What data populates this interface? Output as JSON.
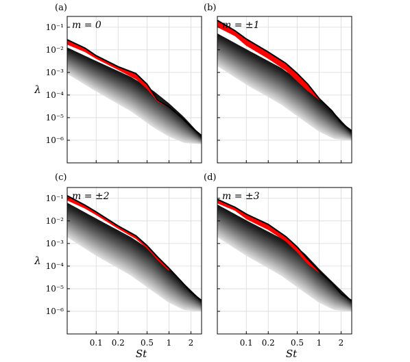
{
  "chart_data": [
    {
      "type": "line",
      "panel": "(a)",
      "mode_label": "m = 0",
      "xlabel": "",
      "ylabel": "λ",
      "xscale": "log",
      "yscale": "log",
      "xlim": [
        0.04,
        2.8
      ],
      "ylim": [
        1e-07,
        0.3
      ],
      "xticks": [
        0.1,
        0.2,
        0.5,
        1,
        2
      ],
      "xtick_labels": [],
      "yticks": [
        1e-06,
        1e-05,
        0.0001,
        0.001,
        0.01,
        0.1
      ],
      "ytick_labels": [
        "10⁻⁶",
        "10⁻⁵",
        "10⁻⁴",
        "10⁻³",
        "10⁻²",
        "10⁻¹"
      ],
      "grid": true,
      "series": [
        {
          "role": "leading",
          "color": "#000000",
          "x": [
            0.04,
            0.07,
            0.1,
            0.2,
            0.35,
            0.5,
            0.7,
            1.0,
            1.5,
            2.0,
            2.8
          ],
          "y": [
            0.028,
            0.012,
            0.0055,
            0.0018,
            0.0009,
            0.0003,
            6e-05,
            3e-05,
            1e-05,
            4e-06,
            1.6e-06
          ]
        },
        {
          "role": "gap-band",
          "color": "#ff0000",
          "x": [
            0.04,
            0.07,
            0.1,
            0.2,
            0.35,
            0.5,
            0.7,
            1.0
          ],
          "y_upper": [
            0.028,
            0.012,
            0.0055,
            0.0018,
            0.0009,
            0.0003,
            6e-05,
            3e-05
          ],
          "y_lower": [
            0.017,
            0.008,
            0.004,
            0.0013,
            0.0005,
            0.00018,
            5e-05,
            2.8e-05
          ]
        },
        {
          "role": "suboptimal-family",
          "color": "#000000",
          "x": [
            0.04,
            0.1,
            0.3,
            0.6,
            1.0,
            1.6,
            2.8
          ],
          "y_top": [
            0.012,
            0.003,
            0.0006,
            0.00015,
            4e-05,
            1e-05,
            1.4e-06
          ],
          "y_bottom": [
            0.0009,
            0.00015,
            2e-05,
            4e-06,
            1.5e-06,
            8e-07,
            7e-07
          ]
        }
      ]
    },
    {
      "type": "line",
      "panel": "(b)",
      "mode_label": "m = ±1",
      "xlabel": "",
      "ylabel": "",
      "xscale": "log",
      "yscale": "log",
      "xlim": [
        0.04,
        2.8
      ],
      "ylim": [
        1e-07,
        0.3
      ],
      "xticks": [
        0.1,
        0.2,
        0.5,
        1,
        2
      ],
      "xtick_labels": [],
      "yticks": [
        1e-06,
        1e-05,
        0.0001,
        0.001,
        0.01,
        0.1
      ],
      "ytick_labels": [],
      "grid": true,
      "series": [
        {
          "role": "leading",
          "color": "#000000",
          "x": [
            0.04,
            0.07,
            0.1,
            0.2,
            0.35,
            0.5,
            0.7,
            1.0,
            1.5,
            2.0,
            2.8
          ],
          "y": [
            0.2,
            0.07,
            0.03,
            0.008,
            0.0025,
            0.0009,
            0.0003,
            7e-05,
            2e-05,
            6e-06,
            2.6e-06
          ]
        },
        {
          "role": "gap-band",
          "color": "#ff0000",
          "x": [
            0.04,
            0.07,
            0.1,
            0.2,
            0.35,
            0.5,
            0.7,
            1.0
          ],
          "y_upper": [
            0.2,
            0.07,
            0.03,
            0.008,
            0.0025,
            0.0009,
            0.0003,
            7e-05
          ],
          "y_lower": [
            0.1,
            0.04,
            0.015,
            0.004,
            0.0012,
            0.0004,
            0.00015,
            6e-05
          ]
        },
        {
          "role": "suboptimal-family",
          "color": "#000000",
          "x": [
            0.04,
            0.1,
            0.3,
            0.6,
            1.0,
            1.6,
            2.8
          ],
          "y_top": [
            0.05,
            0.01,
            0.0015,
            0.0003,
            6e-05,
            1.5e-05,
            2.2e-06
          ],
          "y_bottom": [
            0.002,
            0.0003,
            4e-05,
            8e-06,
            2.5e-06,
            1.2e-06,
            1e-06
          ]
        }
      ]
    },
    {
      "type": "line",
      "panel": "(c)",
      "mode_label": "m = ±2",
      "xlabel": "St",
      "ylabel": "λ",
      "xscale": "log",
      "yscale": "log",
      "xlim": [
        0.04,
        2.8
      ],
      "ylim": [
        1e-07,
        0.3
      ],
      "xticks": [
        0.1,
        0.2,
        0.5,
        1,
        2
      ],
      "xtick_labels": [
        "0.1",
        "0.2",
        "0.5",
        "1",
        "2"
      ],
      "yticks": [
        1e-06,
        1e-05,
        0.0001,
        0.001,
        0.01,
        0.1
      ],
      "ytick_labels": [
        "10⁻⁶",
        "10⁻⁵",
        "10⁻⁴",
        "10⁻³",
        "10⁻²",
        "10⁻¹"
      ],
      "grid": true,
      "series": [
        {
          "role": "leading",
          "color": "#000000",
          "x": [
            0.04,
            0.07,
            0.1,
            0.2,
            0.35,
            0.5,
            0.7,
            1.0,
            1.5,
            2.0,
            2.8
          ],
          "y": [
            0.13,
            0.05,
            0.025,
            0.006,
            0.0022,
            0.0008,
            0.00025,
            8e-05,
            2e-05,
            7e-06,
            3e-06
          ]
        },
        {
          "role": "gap-band",
          "color": "#ff0000",
          "x": [
            0.04,
            0.07,
            0.1,
            0.2,
            0.35,
            0.5,
            0.7,
            1.0
          ],
          "y_upper": [
            0.13,
            0.05,
            0.025,
            0.006,
            0.0022,
            0.0008,
            0.00025,
            8e-05
          ],
          "y_lower": [
            0.08,
            0.035,
            0.018,
            0.0045,
            0.0016,
            0.0006,
            0.00018,
            6e-05
          ]
        },
        {
          "role": "suboptimal-family",
          "color": "#000000",
          "x": [
            0.04,
            0.1,
            0.3,
            0.6,
            1.0,
            1.6,
            2.8
          ],
          "y_top": [
            0.06,
            0.012,
            0.0018,
            0.0004,
            7e-05,
            1.6e-05,
            2.8e-06
          ],
          "y_bottom": [
            0.002,
            0.0003,
            4e-05,
            8e-06,
            2.5e-06,
            1.2e-06,
            1e-06
          ]
        }
      ]
    },
    {
      "type": "line",
      "panel": "(d)",
      "mode_label": "m = ±3",
      "xlabel": "St",
      "ylabel": "",
      "xscale": "log",
      "yscale": "log",
      "xlim": [
        0.04,
        2.8
      ],
      "ylim": [
        1e-07,
        0.3
      ],
      "xticks": [
        0.1,
        0.2,
        0.5,
        1,
        2
      ],
      "xtick_labels": [
        "0.1",
        "0.2",
        "0.5",
        "1",
        "2"
      ],
      "yticks": [
        1e-06,
        1e-05,
        0.0001,
        0.001,
        0.01,
        0.1
      ],
      "ytick_labels": [],
      "grid": true,
      "series": [
        {
          "role": "leading",
          "color": "#000000",
          "x": [
            0.04,
            0.07,
            0.1,
            0.2,
            0.35,
            0.5,
            0.7,
            1.0,
            1.5,
            2.0,
            2.8
          ],
          "y": [
            0.09,
            0.04,
            0.02,
            0.007,
            0.002,
            0.0007,
            0.0002,
            6e-05,
            1.8e-05,
            6e-06,
            3e-06
          ]
        },
        {
          "role": "gap-band",
          "color": "#ff0000",
          "x": [
            0.04,
            0.07,
            0.1,
            0.2,
            0.35,
            0.5,
            0.7,
            1.0
          ],
          "y_upper": [
            0.09,
            0.04,
            0.02,
            0.007,
            0.002,
            0.0007,
            0.0002,
            6e-05
          ],
          "y_lower": [
            0.06,
            0.028,
            0.012,
            0.004,
            0.0012,
            0.0004,
            0.00012,
            5e-05
          ]
        },
        {
          "role": "suboptimal-family",
          "color": "#000000",
          "x": [
            0.04,
            0.1,
            0.3,
            0.6,
            1.0,
            1.6,
            2.8
          ],
          "y_top": [
            0.05,
            0.01,
            0.0016,
            0.0004,
            7e-05,
            1.6e-05,
            2.8e-06
          ],
          "y_bottom": [
            0.002,
            0.0003,
            4e-05,
            8e-06,
            2.5e-06,
            1.2e-06,
            1e-06
          ]
        }
      ]
    }
  ]
}
